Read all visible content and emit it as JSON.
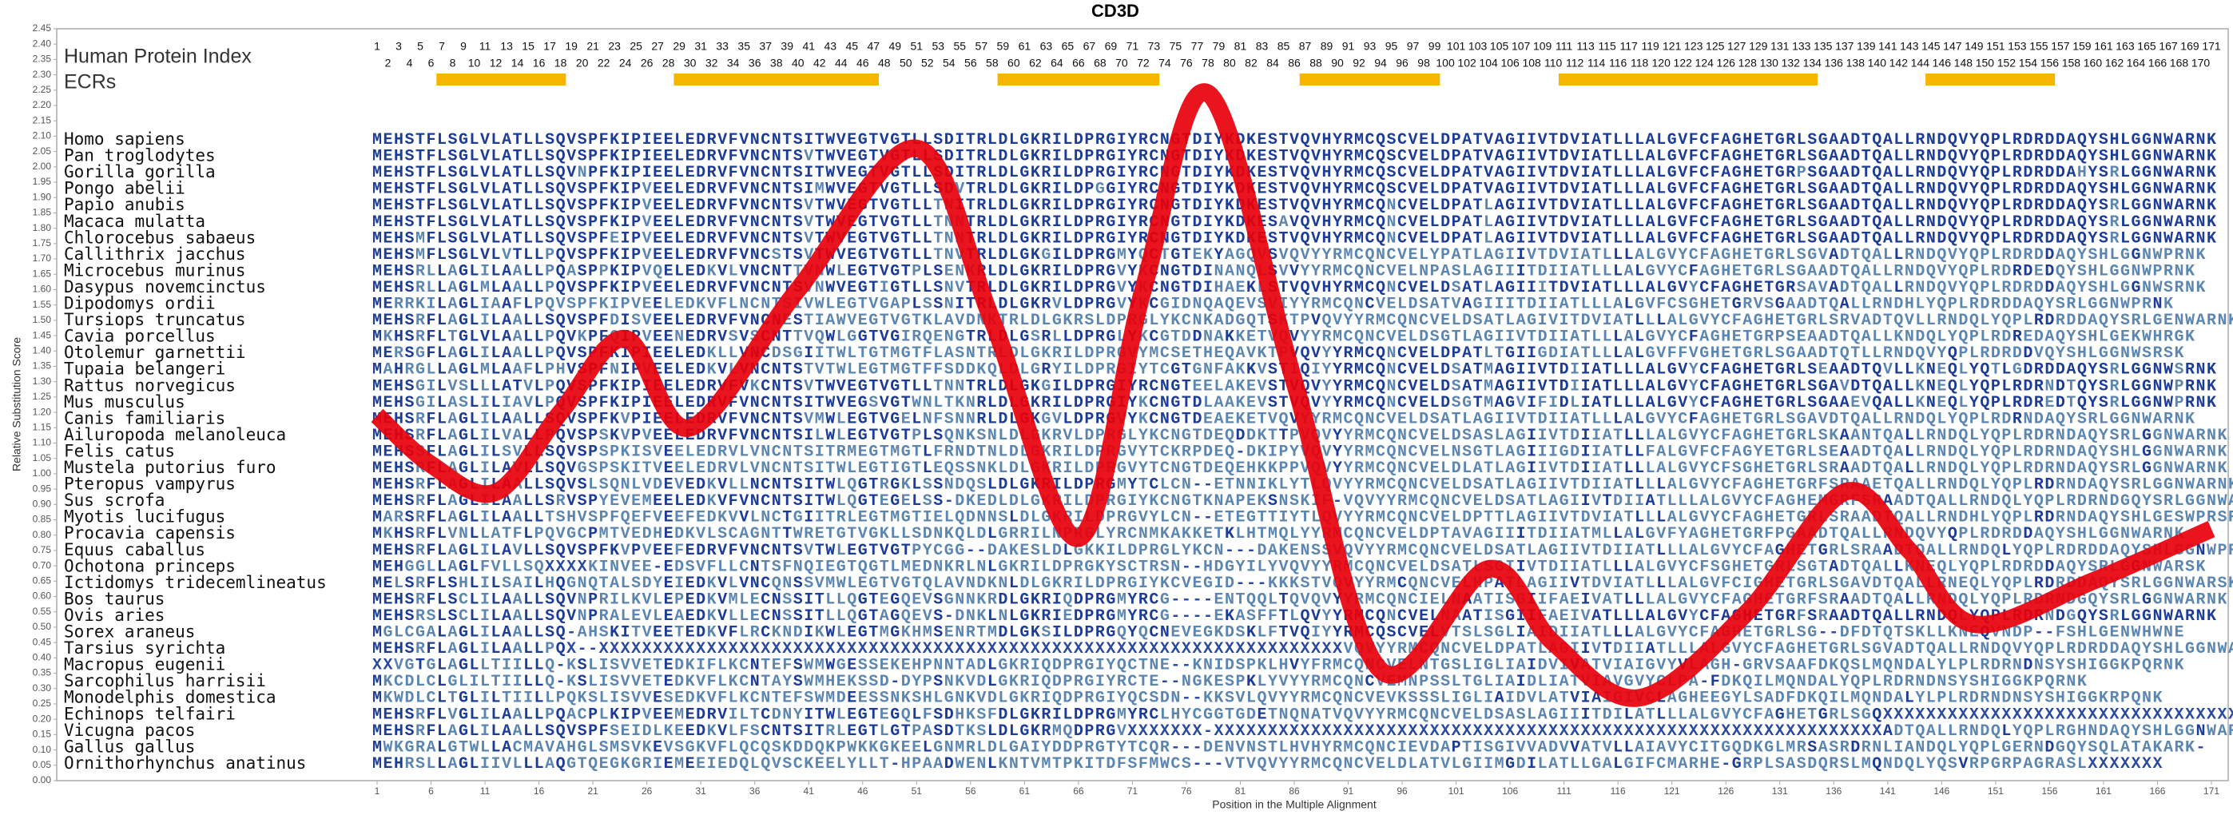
{
  "chart_data": {
    "type": "alignment",
    "title": "CD3D",
    "ylabel": "Relative Substitution Score",
    "xlabel": "Position in the Multiple Alignment",
    "index_label": "Human Protein Index",
    "ecr_label": "ECRs",
    "color": "#e8000b",
    "ylim": [
      0,
      2.45
    ],
    "xlim": [
      1,
      171
    ],
    "yticks": [
      {
        "value": 0,
        "label": "0.00"
      },
      {
        "value": 0.05,
        "label": "0.05"
      },
      {
        "value": 0.1,
        "label": "0.10"
      },
      {
        "value": 0.15,
        "label": "0.15"
      },
      {
        "value": 0.2,
        "label": "0.20"
      },
      {
        "value": 0.25,
        "label": "0.25"
      },
      {
        "value": 0.3,
        "label": "0.30"
      },
      {
        "value": 0.35,
        "label": "0.35"
      },
      {
        "value": 0.4,
        "label": "0.40"
      },
      {
        "value": 0.45,
        "label": "0.45"
      },
      {
        "value": 0.5,
        "label": "0.50"
      },
      {
        "value": 0.55,
        "label": "0.55"
      },
      {
        "value": 0.6,
        "label": "0.60"
      },
      {
        "value": 0.65,
        "label": "0.65"
      },
      {
        "value": 0.7,
        "label": "0.70"
      },
      {
        "value": 0.75,
        "label": "0.75"
      },
      {
        "value": 0.8,
        "label": "0.80"
      },
      {
        "value": 0.85,
        "label": "0.85"
      },
      {
        "value": 0.9,
        "label": "0.90"
      },
      {
        "value": 0.95,
        "label": "0.95"
      },
      {
        "value": 1,
        "label": "1.00"
      },
      {
        "value": 1.05,
        "label": "1.05"
      },
      {
        "value": 1.1,
        "label": "1.10"
      },
      {
        "value": 1.15,
        "label": "1.15"
      },
      {
        "value": 1.2,
        "label": "1.20"
      },
      {
        "value": 1.25,
        "label": "1.25"
      },
      {
        "value": 1.3,
        "label": "1.30"
      },
      {
        "value": 1.35,
        "label": "1.35"
      },
      {
        "value": 1.4,
        "label": "1.40"
      },
      {
        "value": 1.45,
        "label": "1.45"
      },
      {
        "value": 1.5,
        "label": "1.50"
      },
      {
        "value": 1.55,
        "label": "1.55"
      },
      {
        "value": 1.6,
        "label": "1.60"
      },
      {
        "value": 1.65,
        "label": "1.65"
      },
      {
        "value": 1.7,
        "label": "1.70"
      },
      {
        "value": 1.75,
        "label": "1.75"
      },
      {
        "value": 1.8,
        "label": "1.80"
      },
      {
        "value": 1.85,
        "label": "1.85"
      },
      {
        "value": 1.9,
        "label": "1.90"
      },
      {
        "value": 1.95,
        "label": "1.95"
      },
      {
        "value": 2,
        "label": "2.00"
      },
      {
        "value": 2.05,
        "label": "2.05"
      },
      {
        "value": 2.1,
        "label": "2.10"
      },
      {
        "value": 2.15,
        "label": "2.15"
      },
      {
        "value": 2.2,
        "label": "2.20"
      },
      {
        "value": 2.25,
        "label": "2.25"
      },
      {
        "value": 2.3,
        "label": "2.30"
      },
      {
        "value": 2.35,
        "label": "2.35"
      },
      {
        "value": 2.4,
        "label": "2.40"
      },
      {
        "value": 2.45,
        "label": "2.45"
      }
    ],
    "xticks": [
      1,
      6,
      11,
      16,
      21,
      26,
      31,
      36,
      41,
      46,
      51,
      56,
      61,
      66,
      71,
      76,
      81,
      86,
      91,
      96,
      101,
      106,
      111,
      116,
      121,
      126,
      131,
      136,
      141,
      146,
      151,
      156,
      161,
      166,
      171
    ],
    "position_numbers": {
      "odd": [
        1,
        3,
        5,
        7,
        9,
        11,
        13,
        15,
        17,
        19,
        21,
        23,
        25,
        27,
        29,
        31,
        33,
        35,
        37,
        39,
        41,
        43,
        45,
        47,
        49,
        51,
        53,
        55,
        57,
        59,
        61,
        63,
        65,
        67,
        69,
        71,
        73,
        75,
        77,
        79,
        81,
        83,
        85,
        87,
        89,
        91,
        93,
        95,
        97,
        99,
        101,
        103,
        105,
        107,
        109,
        111,
        113,
        115,
        117,
        119,
        121,
        123,
        125,
        127,
        129,
        131,
        133,
        135,
        137,
        139,
        141,
        143,
        145,
        147,
        149,
        151,
        153,
        155,
        157,
        159,
        161,
        163,
        165,
        167,
        169,
        171
      ],
      "even": [
        2,
        4,
        6,
        8,
        10,
        12,
        14,
        16,
        18,
        20,
        22,
        24,
        26,
        28,
        30,
        32,
        34,
        36,
        38,
        40,
        42,
        44,
        46,
        48,
        50,
        52,
        54,
        56,
        58,
        60,
        62,
        64,
        66,
        68,
        70,
        72,
        74,
        76,
        78,
        80,
        82,
        84,
        86,
        88,
        90,
        92,
        94,
        96,
        98,
        100,
        102,
        104,
        106,
        108,
        110,
        112,
        114,
        116,
        118,
        120,
        122,
        124,
        126,
        128,
        130,
        132,
        134,
        136,
        138,
        140,
        142,
        144,
        146,
        148,
        150,
        152,
        154,
        156,
        158,
        160,
        162,
        164,
        166,
        168,
        170
      ]
    },
    "ecrs": [
      [
        7,
        18
      ],
      [
        29,
        47
      ],
      [
        59,
        73
      ],
      [
        87,
        99
      ],
      [
        111,
        134
      ],
      [
        145,
        156
      ]
    ],
    "ecr_color": "#f7b500",
    "curve": {
      "x": [
        1,
        6,
        12,
        18,
        24,
        30,
        40,
        51,
        58,
        66,
        72,
        78,
        86,
        94,
        104,
        110,
        118,
        128,
        137,
        143,
        149,
        160,
        171
      ],
      "values": [
        1.19,
        1.03,
        0.94,
        1.2,
        1.44,
        1.15,
        1.6,
        2.06,
        1.5,
        0.79,
        1.6,
        2.24,
        1.3,
        0.36,
        0.69,
        0.45,
        0.27,
        0.55,
        0.94,
        0.75,
        0.51,
        0.65,
        0.82
      ]
    },
    "species": [
      "Homo sapiens",
      "Pan troglodytes",
      "Gorilla gorilla",
      "Pongo abelii",
      "Papio anubis",
      "Macaca mulatta",
      "Chlorocebus sabaeus",
      "Callithrix jacchus",
      "Microcebus murinus",
      "Dasypus novemcinctus",
      "Dipodomys ordii",
      "Tursiops truncatus",
      "Cavia porcellus",
      "Otolemur garnettii",
      "Tupaia belangeri",
      "Rattus norvegicus",
      "Mus musculus",
      "Canis familiaris",
      "Ailuropoda melanoleuca",
      "Felis catus",
      "Mustela putorius furo",
      "Pteropus vampyrus",
      "Sus scrofa",
      "Myotis lucifugus",
      "Procavia capensis",
      "Equus caballus",
      "Ochotona princeps",
      "Ictidomys tridecemlineatus",
      "Bos taurus",
      "Ovis aries",
      "Sorex araneus",
      "Tarsius syrichta",
      "Macropus eugenii",
      "Sarcophilus harrisii",
      "Monodelphis domestica",
      "Echinops telfairi",
      "Vicugna pacos",
      "Gallus gallus",
      "Ornithorhynchus anatinus"
    ],
    "sequences": [
      "MEHSTFLSGLVLATLLSQVSPFKIPIEELEDRVFVNCNTSITWVEGTVGTLLSDITRLDLGKRILDPRGIYRCNGTDIYKDKESTVQVHYRMCQSCVELDPATVAGIIVTDVIATLLLALGVFCFAGHETGRLSGAADTQALLRNDQVYQPLRDRDDAQYSHLGGNWARNK",
      "MEHSTFLSGLVLATLLSQVSPFKIPIEELEDRVFVNCNTSVTWVEGTVGTLLSDITRLDLGKRILDPRGIYRCNGTDIYKDKESTVQVHYRMCQSCVELDPATVAGIIVTDVIATLLLALGVFCFAGHETGRLSGAADTQALLRNDQVYQPLRDRDDAQYSHLGGNWARNK",
      "MEHSTFLSGLVLATLLSQVNPFKIPIEELEDRVFVNCNTSITWVEGTVGTLLSDITRLDLGKRILDPRGIYRCNGTDIYKDKESTVQVHYRMCQSCVELDPATVAGIIVTDVIATLLLALGVFCFAGHETGRPSGAADTQALLRNDQVYQPLRDRDDAHYSRLGGNWARNK",
      "MEHSTFLSGLVLATLLSQVSPFKIPVEELEDRVFVNCNTSIMWVEGTVGTLLSDVTRLDLGKRILDPGGIYRCNGTDIYKDKESTVQVHYRMCQSCVELDPATVAGIIVTDVIATLLLALGVFCFAGHETGRLSGAADTQALLRNDQVYQPLRDRDDAQYSHLGGNWARNK",
      "MEHSTFLSGLVLATLLSQVSPFKIPVEELEDRVFVNCNTSVTWVEGTVGTLLTNITRLDLGKRILDPRGIYRCNGTDIYKDKESTVQVHYRMCQNCVELDPATLAGIIVTDVIATLLLALGVFCFAGHETGRLSGAADTQALLRNDQVYQPLRDRDDAQYSRLGGNWARNK",
      "MEHSTFLSGLVLATLLSQVSPFKIPVEELEDRVFVNCNTSVTWVEGTVGTLLTNNTRLDLGKRILDPRGIYRCNGTDIYKDKESAVQVHYRMCQNCVELDPATLAGIIVTDVIATLLLALGVFCFAGHETGRLSGAADTQALLRNDQVYQPLRDRDDAQYSRLGGNWARNK",
      "MEHSMFLSGLVLATLLSQVSPFEIPVEELEDRVFVNCNTSVTWVEGTVGTLLTNNTRLDLGKRILDPRGIYRCNGTDIYKDKESTVQVHYRMCQNCVELDPATLAGIIVTDVIATLLLALGVFCFAGHETGRLSGAADTQALLRNDQVYQPLRDRDDAQYSRLGGNWARNK",
      "MEHSMFLSGLVLVTLLPQVSPFKIPVEELEDRVFVNCSTSVTWVEGTVGTLLTNVTRLDLGKGILDPRGMYQCTGTEKYAGQVSVQVYYRMCQNCVELYPATLAGIIVTDVIATLLLALGVYCFAGHETGRLSGVADTQALLRNDQVYQPLRDRDDAQYSHLGGNWPRNK",
      "MEHSRLLAGLILAALLPQASPPKIPVQELEDKVLVNCNTTVNWLEGTVGTPLSENKRLDLGKRILDPRGVYKCNGTDINANQLSVVYYRMCQNCVELNPASLAGIIITDIIATLLLALGVYCFAGHETGRLSGAADTQALLRNDQVYQPLRDRDEDQYSHLGGNWPRNK",
      "MEHSRLLAGLMLAALLPQVSPFKIPVEELEDRVFVNCNTSVNWVEGTIGTLLSNVTRLDLGKRILDPRGVYKCNGTDIHAEKLSTVQVHYRMCQNCVELDSATLAGIIITDVIATLLLALGVYCFAGHETGRSAVADTQALLRNDQVYQPLRDRDDAQYSHLGGNWSRNK",
      "MERRKILAGLIAAFLPQVSPFKIPVEELEDKVFLNCNTSIVWLEGTVGAPLSSNITRLDLGKRVLDPRGVYKCGIDNQAQEVSVIYYRMCQNCVELDSATVAGIIITDIIATLLLALGVFCSGHETGRVSGAADTQALLRNDHLYQPLRDRDDAQYSRLGGNWPRNK",
      "MEHSRFLAGLILAALLSQVSPFDISVEELEDRVFVNCNESTIAWVEGTVGTKLAVDNKTRLDLGKRSLDPRGLYKCNKADGQTSKTPVQVYYRMCQNCVELDSATLAGIVITDVIATLLLALGVYCFAGHETGRLSRVADTQVLLRNDQLYQPLRDRDDAQYSRLGENWARNK",
      "MKHSRFLTGLVLAALLPQVKPFQIPVEENEDRVSVSCNTTVQWLGGTVGIRQENGTRLDLGSRLLDPRGLYKCGTDDNAKKETVQVYYRMCQNCVELDSGTLAGIIVTDIIATLLLALGVYCFAGHETGRPSEAADTQALLKNDQLYQPLRDREDAQYSHLGEKWHRGK",
      "MERSGFLAGLILAALLPQVSPFKIPIEELEDKLLVNCDSGIITWLTGTMGTFLASNTRLDLGKRILDPRGVYMCSETHEQAVKTPVQVYYRMCQNCVELDPATLTGIIGDIATLLLALGVFFVGHETGRLSGAADTQTLLRNDQVYQPLRDRDDVQYSHLGGNWSRSK",
      "MAHRGLLAGLMLAAFLPHVSPFNIPVEELEDKVLVNCNTSTVTWLEGTMGTFFSDDKQLDLGRYILDPRGIYTCGTGNFAKKVSTIQIYYRMCQNCVELDSATMAGIIVTDIIATLLLALGVYCFAGHETGRLSEAADTQVLLKNEQLYQTLGDRDDAQYSRLGGNWSRNK",
      "MEHSGILVSLLLATVLPQVSPFKIPIEELEDRVFVKCNTSVTWVEGTVGTLLTNNTRLDLGKGILDPRGIYRCNGTEELAKEVSTVQVYYRMCQNCVELDSATMAGIIVTDIIATLLLALGVYCFAGHETGRLSGAVDTQALLKNEQLYQPLRDRNDTQYSRLGGNWPRNK",
      "MEHSGILASLILIAVLPQVSPFKIPIEELEDRVFVNCNTSITWVEGSVGTWNLTKNRLDLGKRILDPRGIYKCNGTDLAAKEVSTVQVYYRMCQNCVELDSGTMAGVIFIDLIATLLLALGVYCFAGHETGRLSGAAEVQALLKNEQLYQPLRDREDTQYSRLGGNWPRNK",
      "MEHSRFLAGLILAALLSQVSPFKVPIEELEDRVFVNCNTSVMWLEGTVGELNFSNNRLDLGKGVLDPRGVYKCNGTDEAEKETVQVYYRMCQNCVELDSATLAGIIVTDIIATLLLALGVYCFAGHETGRLSGAVDTQALLRNDQLYQPLRDRNDAQYSRLGGNWARNK",
      "MEHSRFLAGLILVALLPQVSPSKVPVEELEDRVFVNCNTSILWLEGTVGTPLSQNKSNLDLGKRVLDPRGLYKCNGTDEQDDKTTPVQVYYRMCQNCVELDSASLAGIIVTDIIATLLLALGVYCFAGHETGRLSKAANTQALLRNDQLYQPLRDRNDAQYSRLGGNWARNK",
      "MEHSSFLAGLILSVLLSQVSPSPKISVEELEDRVLVNCNTSITRMEGTMGTLFRNDTNLDLGKRILDPRGVYTCKRPDEQ-DKIPYVQVYYRMCQNCVELNSGTLAGIIIGDIIATLLFALGVFCFAGYETGRLSEAADTQALLRNDQLYQPLRDRNDAQYSHLGGNWARNK",
      "MEHSRFLAGLILAVLLSQVGSPSKITVEELEDRVLVNCNTSITWLEGTIGTLEQSSNKLDLGKRILDPRGVYTCNGTDEQEHKKPPVQVYYRMCQNCVELDLATLAGIIVTDIIATLLLALGVYCFSGHETGRLSRAADTQALLRNDQLYQPLRDRNDAQYSRLGGNWARNK",
      "MEHSRFLAGLILAALLSQVSLSQNLVDEVEDKVLLNCNTSITWLQGTRGKLSSNDQSLDLGKRILDPRGMYTCLCN--ETNNIKLYTLQVYYRMCQNCVELDSATLAGIIVTDIIATLLLALGVYCFAGHETGRFSRAAETQALLRNDQLYQPLRDRNDAQYSRLGGNWARNK",
      "MEHSRFLAGLILAALLSRVSPYEVEMEELEDKVFVNCNTSITWLQGTEGELSS-DKEDLDLGKRILDPRGIYKCNGTKNAPEKSNSKIF-VQVYYRMCQNCVELDSATLAGIIVTDIIATLLLALGVYCFAGHEMGRFSRAADTQALLRNDQLYQPLRDRNDGQYSRLGGNWARNK",
      "MARSRFLAGLILAALLTSHVSPFQEFVEEFEDKVVLNCTGIITRLEGTMGTIELQDNNSLDLGKRILDPRGVYLCN--ETEGTTIYTLQVYYRMCQNCVELDPTTLAGIIVTDVIATLLLALGVYCFAGHETGRLSRAADTQALLRNDHLYQPLRDRNDAQYSHLGESWPRSR",
      "MKHSRFLVNLLATFLPQVGCPMTVEDHEDKVLSCAGNTTWRETGTVGKLLSDNKQLDLGRRILNPRGLYRCNMKAKKETKLHTMQLYYRMCQNCVELDPTAVAGIIITDIIATMLLALGVFYAGHETGRFPGAADTQALLRNDQVYQPLRDRDDAQYSHLGGNWARNK",
      "MEHSRFLAGLILAVLLSQVSPFKVPVEEFEDRVFVNCNTSVTWLEGTVGTPYCGG--DAKESLDLGKKILDPRGLYKCN---DAKENSSVQVYYRMCQNCVELDSATLAGIIVTDIIATLLLALGVYCFAGHETGRLSRAADTQALLRNDQLYQPLRDRDDAQYSHLGGNWPRNK",
      "MEHGGLLAGLFVLLSQXXXXKINVEE-EDSVFLLCNTSFNQIEGTQGTLMEDNKRLNLGKRILDPRGKYSCTRSN--HDGYILYVQVYYRMCQNCVELDSATLSGIIVTDIIATLLLALGVYCFSGHETGRLSGTADTQALLKNEQLYQPLRDRDDAQYSRLGGNWARSK",
      "MELSRFLSHLILSAILHQGNQTALSDYEIEDKVLVNCQNSSVMWLEGTVGTQLAVNDKNLDLGKRILDPRGIYKCVEGID---KKKSTVQVYYRMCQNCVELHPATLAGIIVTDVIATLLLALGVFCIGHETGRLSGAVDTQALLRNEQLYQPLRDRDDAQYSRLGGNWARSK",
      "MEHSRFLSCLILAALLSQVNPRILKVLEPEDKVMLECNSSITLLQGTEGQEVSGNNKRDLGKRIQDPRGMYRCG----ENTQQLTQVQVYYRMCQNCIELNAATISGIIFAEIVATLLLALGVYCFAGHETGRFSRAADTQALLRNDQLYQPLRDRNDGQYSRLGGNWARNK",
      "MEHSRSLSCLILAALLSQVNPRALEVLEAEDKVLLECNSSITLLQGTAGQEVS-DNKLNLGKRIEDPRGMYRCG----EKASFFTLQVYYRMCQNCVELNAATISGIIFAEIVATLLLALGVYCFAGHETGRFSRAADTQALLRNDQLYQPLRDRNDGQYSRLGGNWARNK",
      "MGLCGALAGLILAALLSQ-AHSKITVEETEDKVFLRCKNDIKWLEGTMGKHMSENRTMDLGKSILDPRGQYQCNEVEGKDSKLFTVQIYYRMCQSCVELVTSLSGLIAIDIIATLLLALGVYCFAGHETGRLSG--DFDTQTSKLLKNEQVNDP--FSHLGENWHWNE",
      "MEHSRFLAGLILAALLPQX--XXXXXXXXXXXXXXXXXXXXXXXXXXXXXXXXXXXXXXXXXXXXXXXXXXXXXXXXXXXXXXXXXXXXXVQVYYRMCQNCVELDPATLAGIIVTDIIATLLLALGVYCFAGHETGRLSGVADTQALLRNDQVYQPLRDRDDAQYSHLGGNWARNK",
      "XXVGTGLAGLLTIILLQ-KSLISVVETEDKIFLKCNTEFSWMWGESSEKEHPNNTADLGKRIQDPRGIYQCTNE--KNIDSPKLHVYFRMCQNCVELNTGSLIGLIAIDVIVATVIAIGVYVLAGH-GRVSAAFDKQSLMQNDALYLPLRDRNDNSYSHIGGKPQRNK",
      "MKCDLCLGLILTIILLQ-KSLISVVETEDKVFLKCNTAYSWMHEKSSD-DYPSNKVDLGKRIQDPRGIYRCTE--NGKESPKLYVYYRMCQNCVEMNPSSLTGLIAIDLIATVIAVGVYCLPA-FDKQILMQNDALYQPLRDRNDNSYSHIGGKPQRNK",
      "MKWDLCLTGLILTIILLPQKSLISVVESEDKVFLKCNTEFSWMDEESSNKSHLGNKVDLGKRIQDPRGIYQCSDN--KKSVLQVYYRMCQNCVEVKSSSLIGLIAIDVLATVIAIGIVCLAGHEEGYLSADFDKQILMQNDALYLPLRDRNDNSYSHIGGKRPQNK",
      "MEHSRFLVGLILAALLPQACPLKIPVEEMEDRVILTCDNYITWLEGTEGQLFSDHKSFDLGKRILDPRGMYRCLHYCGGTGDETNQNATVQVYYRMCQNCVELDSASLAGIIITDILATLLLALGVYCFAGHETGRLSGQXXXXXXXXXXXXXXXXXXXXXXXXXXXXXXXXXX",
      "MEHSRFLAGLILAALLSQVSPFSEIDLKEEDKVLFSCNTSITRLEGTLGTPASDTKSLDLGKRMQDPRGVXXXXXXX-XXXXXXXXXXXXXXXXXXXXXXXXXXXXXXXXXXXXXXXXXXXXXXXXXXXXXXXXXXXXXXADTQALLRNDQLYQPLRGHNDAQYSHLGGNWARNR",
      "MWKGRALGTWLLACMAVAHGLSMSVKEVSGKVFLQCQSKDDQKPWKKGKEELGNMRLDLGAIYDDPRGTYTCQR---DENVNSTLHVHYRMCQNCIEVDAPTISGIVVADVVATVLLAIAVYCITGQDKGLMRSASRDRNLIANDQLYQPLGERNDGQYSQLATAKARK-",
      "MEHRSLLAGLIIVLLLAQGTQEGKGRIEMEEIEDQLQVSCKEELYLLT-HPAADWENLKNTVMTPKITDFSFMWCS---VTVQVYYRMCQNCVELDLATVLGIIMGDILATLLGALGIFCMARHE-GRPLSASDQRSLMQNDQLYQSVRPGRPAGRASLXXXXXXX"
    ]
  }
}
